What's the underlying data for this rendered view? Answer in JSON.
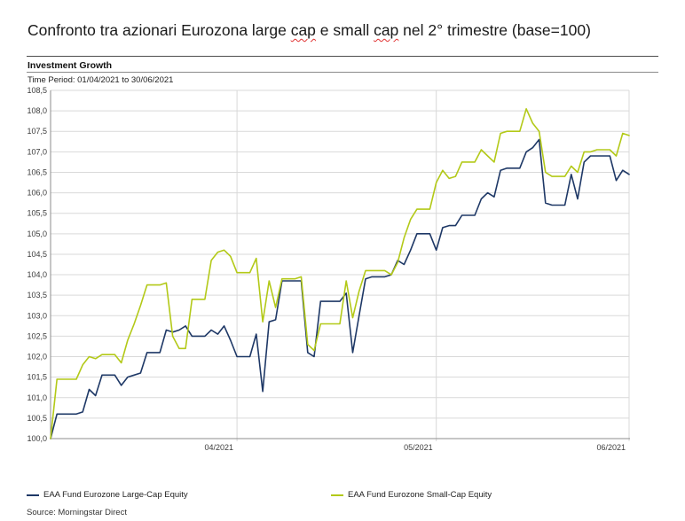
{
  "page_title": {
    "part1": "Confronto tra azionari Eurozona large ",
    "cap1": "cap",
    "part2": " e small ",
    "cap2": "cap",
    "part3": " nel 2° trimestre (base=100)"
  },
  "header": {
    "section_title": "Investment Growth",
    "time_period": "Time Period: 01/04/2021 to 30/06/2021"
  },
  "legend": {
    "large_cap": {
      "label": "EAA Fund Eurozone Large-Cap Equity",
      "color": "#1e3866"
    },
    "small_cap": {
      "label": "EAA Fund Eurozone Small-Cap Equity",
      "color": "#b3c918"
    }
  },
  "footer": {
    "source": "Source: Morningstar Direct"
  },
  "chart_data": {
    "type": "line",
    "title": "Investment Growth",
    "time_period": "01/04/2021 to 30/06/2021",
    "x_unit": "day",
    "x_start_date": "01/04/2021",
    "x_end_date": "30/06/2021",
    "x_tick_labels": [
      "04/2021",
      "05/2021",
      "06/2021"
    ],
    "x_tick_day_index": [
      29,
      60,
      90
    ],
    "ylim": [
      100,
      108.5
    ],
    "y_tick_step": 0.5,
    "decimal_separator": ",",
    "grid": true,
    "legend_position": "bottom",
    "grid_color": "#d9d9d9",
    "axis_color": "#8c8c8c",
    "tick_label_color": "#3c3c3c",
    "series": [
      {
        "name": "EAA Fund Eurozone Large-Cap Equity",
        "slug": "large-cap",
        "color": "#1e3866",
        "values": [
          100,
          100.6,
          100.6,
          100.6,
          100.6,
          100.65,
          101.2,
          101.05,
          101.55,
          101.55,
          101.55,
          101.3,
          101.5,
          101.55,
          101.6,
          102.1,
          102.1,
          102.1,
          102.65,
          102.6,
          102.65,
          102.75,
          102.5,
          102.5,
          102.5,
          102.65,
          102.55,
          102.75,
          102.4,
          102,
          102,
          102,
          102.55,
          101.15,
          102.85,
          102.9,
          103.85,
          103.85,
          103.85,
          103.85,
          102.1,
          102,
          103.35,
          103.35,
          103.35,
          103.35,
          103.55,
          102.1,
          103,
          103.9,
          103.95,
          103.95,
          103.95,
          104,
          104.35,
          104.25,
          104.6,
          105,
          105,
          105,
          104.6,
          105.15,
          105.2,
          105.2,
          105.45,
          105.45,
          105.45,
          105.85,
          106,
          105.9,
          106.55,
          106.6,
          106.6,
          106.6,
          107,
          107.1,
          107.3,
          105.75,
          105.7,
          105.7,
          105.7,
          106.45,
          105.85,
          106.75,
          106.9,
          106.9,
          106.9,
          106.9,
          106.3,
          106.55,
          106.45
        ]
      },
      {
        "name": "EAA Fund Eurozone Small-Cap Equity",
        "slug": "small-cap",
        "color": "#b3c918",
        "values": [
          100,
          101.45,
          101.45,
          101.45,
          101.45,
          101.8,
          102,
          101.95,
          102.05,
          102.05,
          102.05,
          101.85,
          102.4,
          102.8,
          103.25,
          103.75,
          103.75,
          103.75,
          103.8,
          102.5,
          102.2,
          102.2,
          103.4,
          103.4,
          103.4,
          104.35,
          104.55,
          104.6,
          104.45,
          104.05,
          104.05,
          104.05,
          104.4,
          102.85,
          103.85,
          103.2,
          103.9,
          103.9,
          103.9,
          103.95,
          102.3,
          102.15,
          102.8,
          102.8,
          102.8,
          102.8,
          103.85,
          102.95,
          103.6,
          104.1,
          104.1,
          104.1,
          104.1,
          104,
          104.3,
          104.9,
          105.35,
          105.6,
          105.6,
          105.6,
          106.25,
          106.55,
          106.35,
          106.4,
          106.75,
          106.75,
          106.75,
          107.05,
          106.9,
          106.75,
          107.45,
          107.5,
          107.5,
          107.5,
          108.05,
          107.7,
          107.5,
          106.5,
          106.4,
          106.4,
          106.4,
          106.65,
          106.5,
          107,
          107,
          107.05,
          107.05,
          107.05,
          106.9,
          107.45,
          107.4
        ]
      }
    ]
  }
}
